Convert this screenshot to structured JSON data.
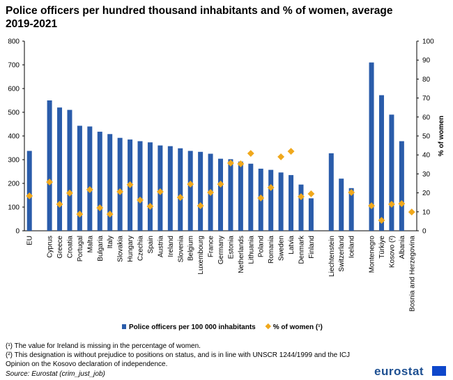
{
  "chart_data": {
    "type": "bar_line",
    "title": "Police officers per hundred thousand inhabitants and % of women, average 2019-2021",
    "categories": [
      "EU",
      null,
      "Cyprus",
      "Greece",
      "Croatia",
      "Portugal",
      "Malta",
      "Bulgaria",
      "Italy",
      "Slovakia",
      "Hungary",
      "Czechia",
      "Spain",
      "Austria",
      "Ireland",
      "Slovenia",
      "Belgium",
      "Luxembourg",
      "France",
      "Germany",
      "Estonia",
      "Netherlands",
      "Lithuania",
      "Poland",
      "Romania",
      "Sweden",
      "Latvia",
      "Denmark",
      "Finland",
      null,
      "Liechtenstein",
      "Switzerland",
      "Iceland",
      null,
      "Montenegro",
      "Türkiye",
      "Kosovo (²)",
      "Albania",
      "Bosnia and Herzegovina"
    ],
    "series": [
      {
        "name": "Police officers per 100 000 inhabitants",
        "color": "#2a5caa",
        "values": [
          337,
          null,
          550,
          520,
          510,
          443,
          440,
          418,
          408,
          392,
          385,
          378,
          373,
          360,
          357,
          348,
          337,
          333,
          325,
          304,
          302,
          292,
          283,
          262,
          257,
          246,
          235,
          195,
          137,
          null,
          327,
          220,
          180,
          null,
          710,
          572,
          490,
          378,
          null
        ]
      },
      {
        "name": "% of women (¹)",
        "color": "#f0a81c",
        "axis": "y2",
        "values": [
          18.4,
          null,
          25.7,
          14,
          19.9,
          8.8,
          21.7,
          12.1,
          8.8,
          20.6,
          24.3,
          16.2,
          12.9,
          20.6,
          null,
          17.6,
          24.6,
          13.2,
          20.2,
          24.6,
          35.7,
          35.3,
          40.8,
          17.3,
          22.8,
          39,
          41.9,
          18,
          19.5,
          null,
          null,
          null,
          20.2,
          null,
          13.2,
          5.5,
          14,
          14.3,
          9.9
        ]
      }
    ],
    "ylim": [
      0,
      800
    ],
    "yticks": [
      0,
      100,
      200,
      300,
      400,
      500,
      600,
      700,
      800
    ],
    "y2lim": [
      0,
      100
    ],
    "y2ticks": [
      0,
      10,
      20,
      30,
      40,
      50,
      60,
      70,
      80,
      90,
      100
    ],
    "y2label": "% of women",
    "notes": [
      "(¹) The value for Ireland is missing in the percentage of women.",
      "(²) This designation is without prejudice to positions on status, and is in line with UNSCR 1244/1999 and the ICJ",
      "Opinion on the Kosovo declaration of independence."
    ],
    "source": "Source: Eurostat (crim_just_job)",
    "logo": "eurostat"
  }
}
